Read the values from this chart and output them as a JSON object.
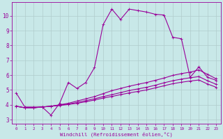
{
  "xlabel": "Windchill (Refroidissement éolien,°C)",
  "bg_color": "#c8e8e8",
  "grid_color": "#b0cccc",
  "line_color": "#990099",
  "xlim": [
    -0.5,
    23.5
  ],
  "ylim": [
    2.7,
    10.9
  ],
  "xticks": [
    0,
    1,
    2,
    3,
    4,
    5,
    6,
    7,
    8,
    9,
    10,
    11,
    12,
    13,
    14,
    15,
    16,
    17,
    18,
    19,
    20,
    21,
    22,
    23
  ],
  "yticks": [
    3,
    4,
    5,
    6,
    7,
    8,
    9,
    10
  ],
  "line1_x": [
    0,
    1,
    2,
    3,
    4,
    5,
    6,
    7,
    8,
    9,
    10,
    11,
    12,
    13,
    14,
    15,
    16,
    17,
    18,
    19,
    20,
    21,
    22,
    23
  ],
  "line1_y": [
    4.8,
    3.85,
    3.85,
    3.85,
    3.3,
    4.1,
    5.5,
    5.1,
    5.5,
    6.5,
    9.4,
    10.45,
    9.75,
    10.45,
    10.35,
    10.25,
    10.1,
    10.05,
    8.55,
    8.45,
    5.85,
    6.55,
    5.85,
    5.65
  ],
  "line2_x": [
    0,
    1,
    2,
    3,
    4,
    5,
    6,
    7,
    8,
    9,
    10,
    11,
    12,
    13,
    14,
    15,
    16,
    17,
    18,
    19,
    20,
    21,
    22,
    23
  ],
  "line2_y": [
    3.9,
    3.8,
    3.8,
    3.85,
    3.9,
    4.0,
    4.1,
    4.25,
    4.4,
    4.55,
    4.75,
    4.95,
    5.1,
    5.25,
    5.38,
    5.5,
    5.65,
    5.8,
    5.98,
    6.1,
    6.2,
    6.35,
    6.05,
    5.75
  ],
  "line3_x": [
    0,
    1,
    2,
    3,
    4,
    5,
    6,
    7,
    8,
    9,
    10,
    11,
    12,
    13,
    14,
    15,
    16,
    17,
    18,
    19,
    20,
    21,
    22,
    23
  ],
  "line3_y": [
    3.9,
    3.8,
    3.8,
    3.85,
    3.9,
    3.98,
    4.05,
    4.15,
    4.28,
    4.4,
    4.55,
    4.68,
    4.82,
    4.96,
    5.07,
    5.18,
    5.32,
    5.48,
    5.62,
    5.73,
    5.82,
    5.9,
    5.62,
    5.38
  ],
  "line4_x": [
    0,
    1,
    2,
    3,
    4,
    5,
    6,
    7,
    8,
    9,
    10,
    11,
    12,
    13,
    14,
    15,
    16,
    17,
    18,
    19,
    20,
    21,
    22,
    23
  ],
  "line4_y": [
    3.9,
    3.8,
    3.8,
    3.85,
    3.9,
    3.95,
    4.02,
    4.1,
    4.2,
    4.32,
    4.45,
    4.56,
    4.68,
    4.8,
    4.9,
    5.0,
    5.14,
    5.28,
    5.42,
    5.52,
    5.6,
    5.67,
    5.4,
    5.18
  ]
}
